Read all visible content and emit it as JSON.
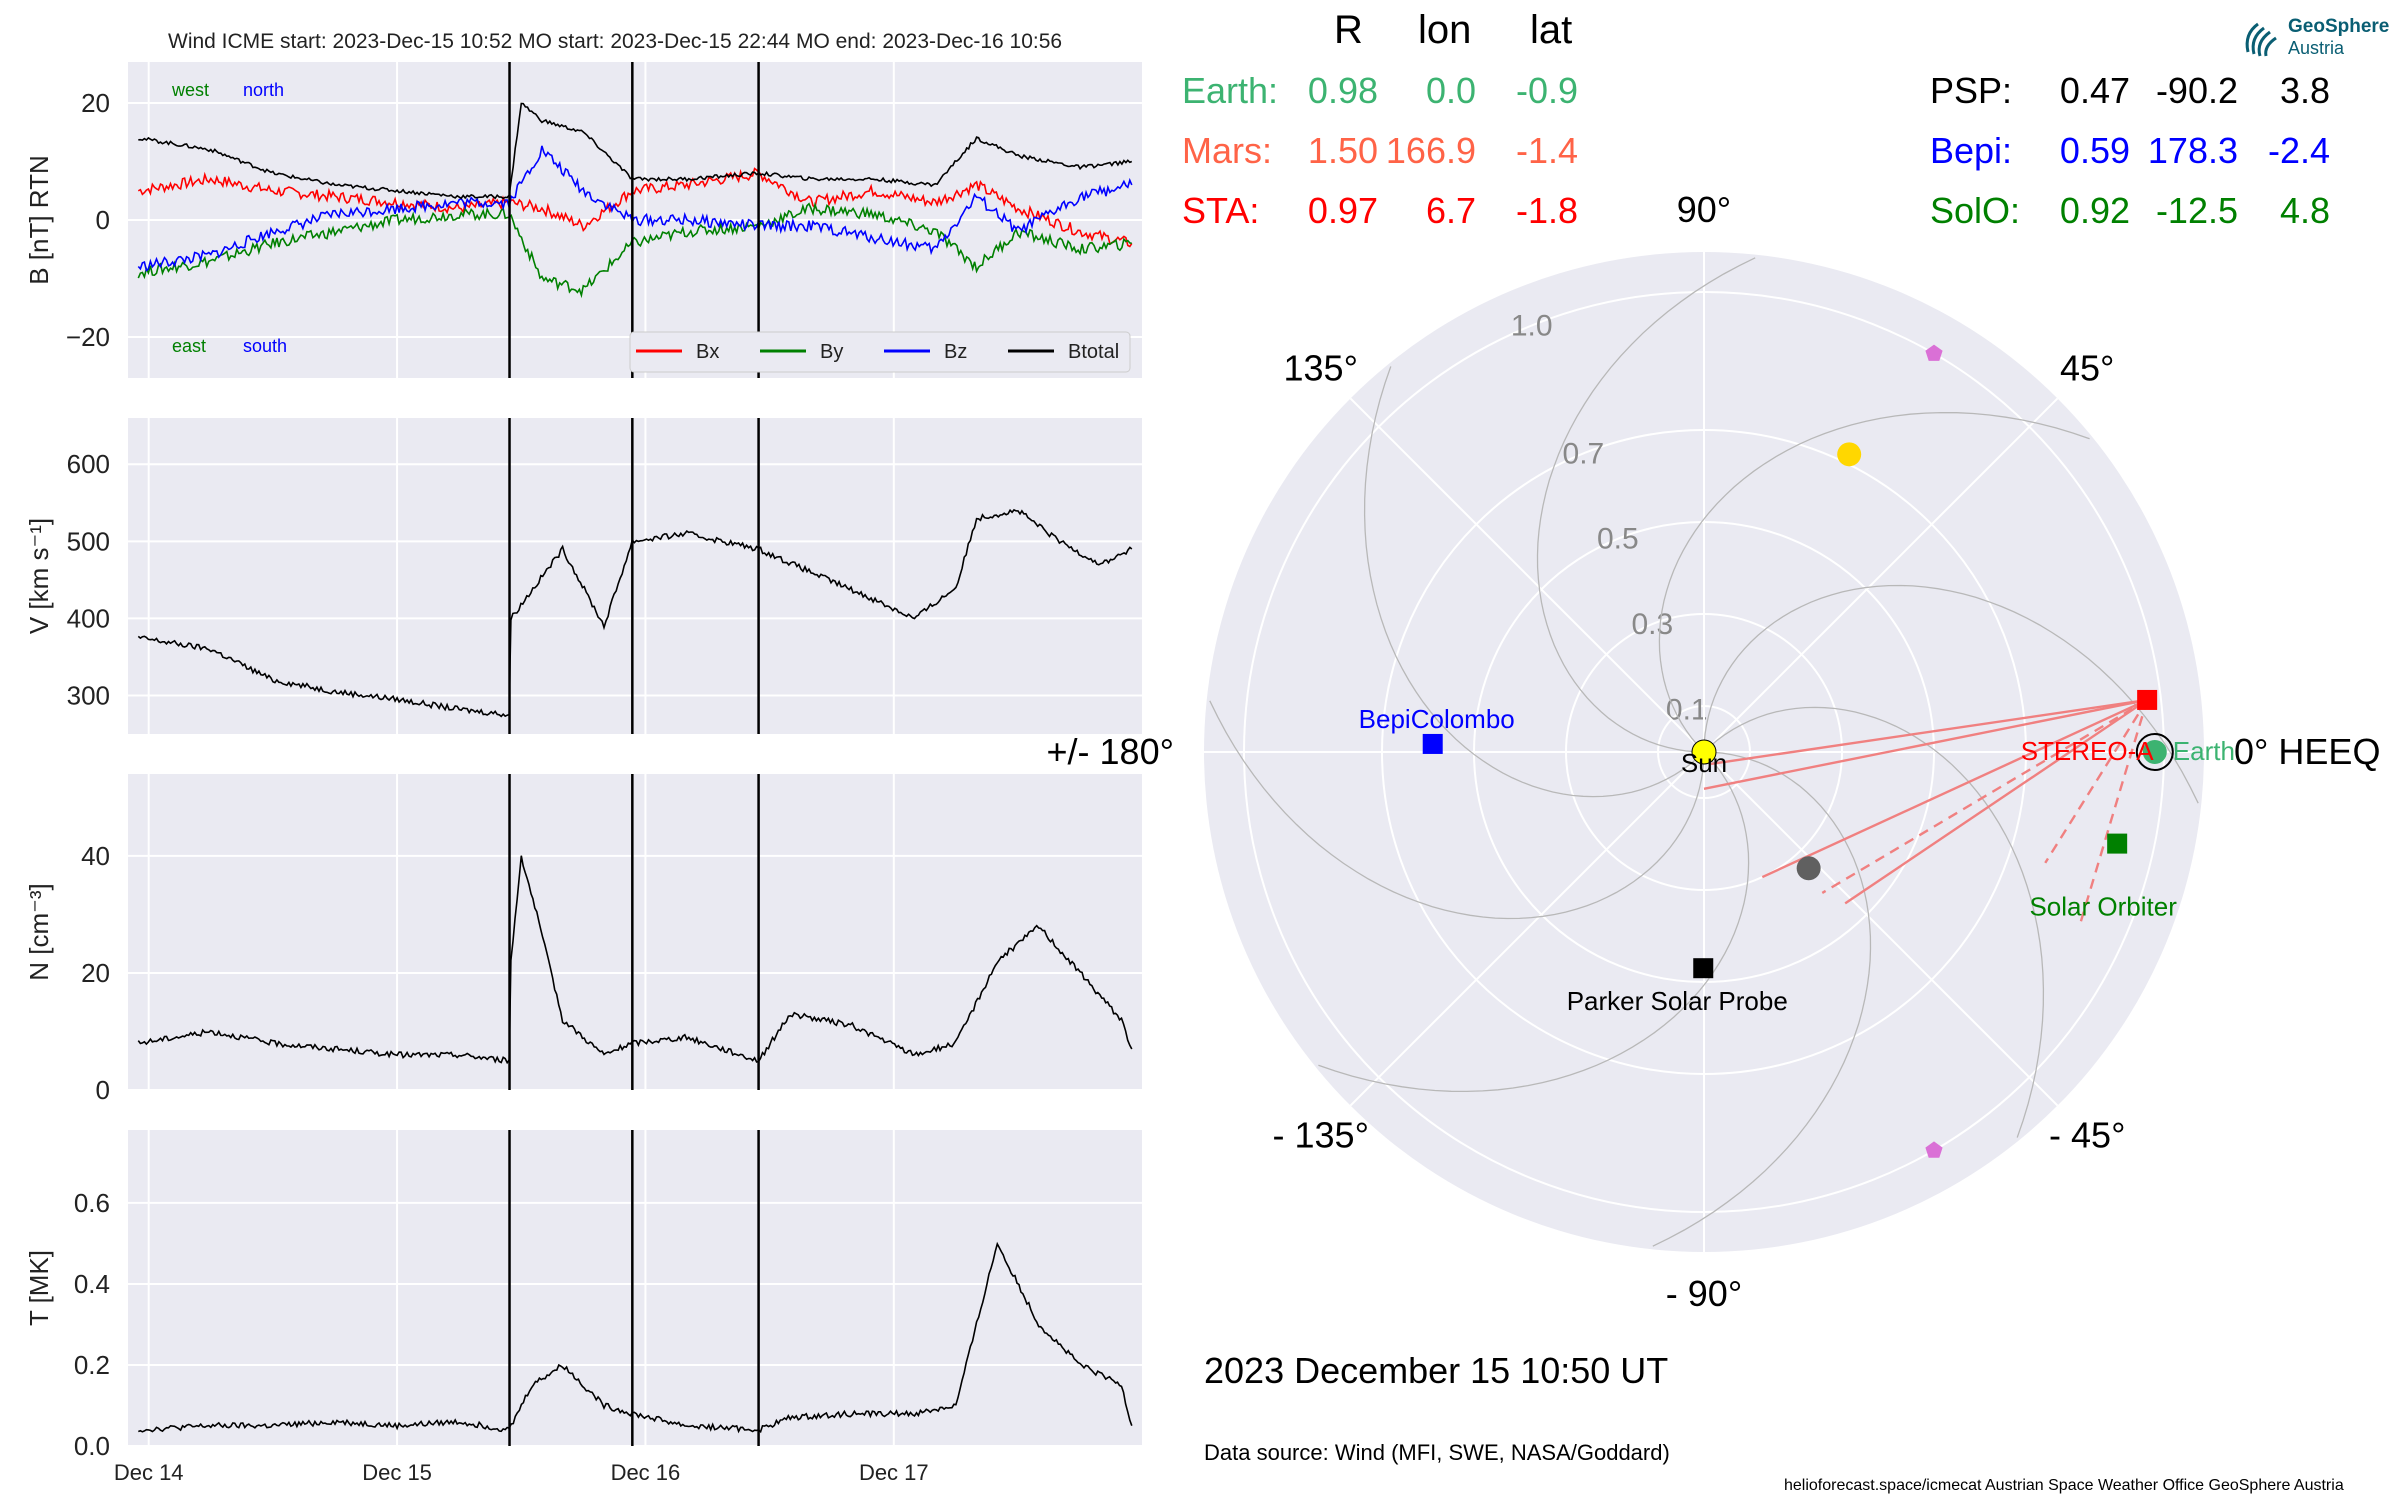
{
  "header": {
    "title": "Wind    ICME start: 2023-Dec-15 10:52   MO start: 2023-Dec-15 22:44   MO end: 2023-Dec-16 10:56",
    "logo_text_1": "GeoSphere",
    "logo_text_2": "Austria"
  },
  "event_lines_x": [
    "2023-12-15T10:52",
    "2023-12-15T22:44",
    "2023-12-16T10:56"
  ],
  "chart_data": [
    {
      "type": "line",
      "id": "magnetic_field",
      "ylabel": "B [nT] RTN",
      "ylim": [
        -27,
        27
      ],
      "yticks": [
        20,
        0,
        -20
      ],
      "ytick_labels": [
        "20",
        "0",
        "−20"
      ],
      "grid": true,
      "legend_placement": "lower-right",
      "annotations": {
        "west": "west",
        "north": "north",
        "east": "east",
        "south": "south"
      },
      "x_days": [
        "2023-12-14",
        "2023-12-15",
        "2023-12-16",
        "2023-12-17"
      ],
      "series": [
        {
          "name": "Bx",
          "color": "#ff0000",
          "x": [
            "2023-12-13T23:00",
            "2023-12-14T06:00",
            "2023-12-14T12:00",
            "2023-12-14T18:00",
            "2023-12-15T00:00",
            "2023-12-15T06:00",
            "2023-12-15T10:50",
            "2023-12-15T14:00",
            "2023-12-15T18:00",
            "2023-12-15T22:44",
            "2023-12-16T04:00",
            "2023-12-16T10:56",
            "2023-12-16T16:00",
            "2023-12-16T22:00",
            "2023-12-17T04:00",
            "2023-12-17T08:00",
            "2023-12-17T12:00",
            "2023-12-17T18:00",
            "2023-12-17T23:00"
          ],
          "values": [
            5,
            7,
            5,
            4,
            3,
            2,
            3,
            2,
            -1,
            5,
            6,
            8,
            3,
            5,
            3,
            6,
            2,
            -2,
            -4
          ]
        },
        {
          "name": "By",
          "color": "#008000",
          "x": [
            "2023-12-13T23:00",
            "2023-12-14T06:00",
            "2023-12-14T12:00",
            "2023-12-14T18:00",
            "2023-12-15T00:00",
            "2023-12-15T06:00",
            "2023-12-15T10:50",
            "2023-12-15T14:00",
            "2023-12-15T18:00",
            "2023-12-15T22:44",
            "2023-12-16T04:00",
            "2023-12-16T10:56",
            "2023-12-16T16:00",
            "2023-12-16T22:00",
            "2023-12-17T04:00",
            "2023-12-17T08:00",
            "2023-12-17T12:00",
            "2023-12-17T18:00",
            "2023-12-17T23:00"
          ],
          "values": [
            -9,
            -7,
            -4,
            -2,
            0,
            1,
            1,
            -10,
            -12,
            -4,
            -2,
            -1,
            2,
            1,
            -2,
            -8,
            -2,
            -5,
            -4
          ]
        },
        {
          "name": "Bz",
          "color": "#0000ff",
          "x": [
            "2023-12-13T23:00",
            "2023-12-14T06:00",
            "2023-12-14T12:00",
            "2023-12-14T18:00",
            "2023-12-15T00:00",
            "2023-12-15T06:00",
            "2023-12-15T10:50",
            "2023-12-15T14:00",
            "2023-12-15T18:00",
            "2023-12-15T22:44",
            "2023-12-16T04:00",
            "2023-12-16T10:56",
            "2023-12-16T16:00",
            "2023-12-16T22:00",
            "2023-12-17T04:00",
            "2023-12-17T08:00",
            "2023-12-17T12:00",
            "2023-12-17T18:00",
            "2023-12-17T23:00"
          ],
          "values": [
            -8,
            -6,
            -2,
            1,
            2,
            3,
            3,
            12,
            5,
            0,
            0,
            -1,
            -1,
            -3,
            -5,
            4,
            -2,
            4,
            6
          ]
        },
        {
          "name": "Btotal",
          "color": "#000000",
          "x": [
            "2023-12-13T23:00",
            "2023-12-14T06:00",
            "2023-12-14T12:00",
            "2023-12-14T18:00",
            "2023-12-15T00:00",
            "2023-12-15T06:00",
            "2023-12-15T10:50",
            "2023-12-15T12:00",
            "2023-12-15T14:00",
            "2023-12-15T18:00",
            "2023-12-15T22:44",
            "2023-12-16T04:00",
            "2023-12-16T10:56",
            "2023-12-16T16:00",
            "2023-12-16T22:00",
            "2023-12-17T04:00",
            "2023-12-17T08:00",
            "2023-12-17T12:00",
            "2023-12-17T18:00",
            "2023-12-17T23:00"
          ],
          "values": [
            14,
            12,
            8,
            6,
            5,
            4,
            4,
            20,
            17,
            15,
            7,
            7,
            8,
            7,
            7,
            6,
            14,
            11,
            9,
            10
          ]
        }
      ]
    },
    {
      "type": "line",
      "id": "velocity",
      "ylabel": "V [km s⁻¹]",
      "ylim": [
        250,
        660
      ],
      "yticks": [
        600,
        500,
        400,
        300
      ],
      "grid": true,
      "series": [
        {
          "name": "",
          "color": "#000000",
          "x": [
            "2023-12-13T23:00",
            "2023-12-14T06:00",
            "2023-12-14T12:00",
            "2023-12-14T18:00",
            "2023-12-15T00:00",
            "2023-12-15T06:00",
            "2023-12-15T10:50",
            "2023-12-15T11:00",
            "2023-12-15T16:00",
            "2023-12-15T20:00",
            "2023-12-15T22:44",
            "2023-12-16T04:00",
            "2023-12-16T10:56",
            "2023-12-16T16:00",
            "2023-12-16T22:00",
            "2023-12-17T02:00",
            "2023-12-17T06:00",
            "2023-12-17T08:00",
            "2023-12-17T12:00",
            "2023-12-17T16:00",
            "2023-12-17T20:00",
            "2023-12-17T23:00"
          ],
          "values": [
            375,
            360,
            320,
            305,
            295,
            282,
            275,
            400,
            490,
            390,
            500,
            510,
            490,
            460,
            425,
            400,
            440,
            530,
            540,
            500,
            470,
            490
          ]
        }
      ]
    },
    {
      "type": "line",
      "id": "density",
      "ylabel": "N [cm⁻³]",
      "ylim": [
        0,
        54
      ],
      "yticks": [
        40,
        20,
        0
      ],
      "grid": true,
      "series": [
        {
          "name": "",
          "color": "#000000",
          "x": [
            "2023-12-13T23:00",
            "2023-12-14T06:00",
            "2023-12-14T12:00",
            "2023-12-14T18:00",
            "2023-12-15T00:00",
            "2023-12-15T06:00",
            "2023-12-15T10:50",
            "2023-12-15T11:00",
            "2023-12-15T12:00",
            "2023-12-15T13:30",
            "2023-12-15T16:00",
            "2023-12-15T20:00",
            "2023-12-15T22:44",
            "2023-12-16T04:00",
            "2023-12-16T10:56",
            "2023-12-16T14:00",
            "2023-12-16T20:00",
            "2023-12-17T02:00",
            "2023-12-17T06:00",
            "2023-12-17T10:00",
            "2023-12-17T14:00",
            "2023-12-17T18:00",
            "2023-12-17T22:00",
            "2023-12-17T23:00"
          ],
          "values": [
            8,
            10,
            8,
            7,
            6,
            6,
            5,
            22,
            40,
            30,
            12,
            6,
            8,
            9,
            5,
            13,
            11,
            6,
            8,
            22,
            28,
            20,
            12,
            7
          ]
        }
      ]
    },
    {
      "type": "line",
      "id": "temperature",
      "ylabel": "T [MK]",
      "ylim": [
        0,
        0.78
      ],
      "yticks": [
        0.6,
        0.4,
        0.2,
        0.0
      ],
      "ytick_labels": [
        "0.6",
        "0.4",
        "0.2",
        "0.0"
      ],
      "xtick_labels": [
        "Dec 14",
        "Dec 15",
        "Dec 16",
        "Dec 17"
      ],
      "grid": true,
      "series": [
        {
          "name": "",
          "color": "#000000",
          "x": [
            "2023-12-13T23:00",
            "2023-12-14T06:00",
            "2023-12-14T12:00",
            "2023-12-14T18:00",
            "2023-12-15T00:00",
            "2023-12-15T06:00",
            "2023-12-15T10:50",
            "2023-12-15T13:00",
            "2023-12-15T16:00",
            "2023-12-15T20:00",
            "2023-12-15T22:44",
            "2023-12-16T04:00",
            "2023-12-16T10:56",
            "2023-12-16T14:00",
            "2023-12-16T20:00",
            "2023-12-17T02:00",
            "2023-12-17T06:00",
            "2023-12-17T08:00",
            "2023-12-17T10:00",
            "2023-12-17T14:00",
            "2023-12-17T18:00",
            "2023-12-17T22:00",
            "2023-12-17T23:00"
          ],
          "values": [
            0.04,
            0.05,
            0.05,
            0.06,
            0.05,
            0.06,
            0.04,
            0.15,
            0.2,
            0.1,
            0.08,
            0.05,
            0.04,
            0.07,
            0.08,
            0.08,
            0.1,
            0.3,
            0.5,
            0.3,
            0.2,
            0.15,
            0.05
          ]
        }
      ]
    },
    {
      "type": "scatter",
      "id": "polar_position",
      "subtype": "polar",
      "r_ticks": [
        0.1,
        0.3,
        0.5,
        0.7,
        1.0
      ],
      "r_tick_labels": [
        "0.1",
        "0.3",
        "0.5",
        "0.7",
        "1.0"
      ],
      "angle_labels": [
        {
          "deg": 0,
          "label": "0° HEEQ"
        },
        {
          "deg": 45,
          "label": "45°"
        },
        {
          "deg": 90,
          "label": "90°"
        },
        {
          "deg": 135,
          "label": "135°"
        },
        {
          "deg": 180,
          "label": "+/- 180°"
        },
        {
          "deg": -135,
          "label": "- 135°"
        },
        {
          "deg": -90,
          "label": "- 90°"
        },
        {
          "deg": -45,
          "label": "- 45°"
        }
      ],
      "grid": true,
      "points": [
        {
          "name": "Sun",
          "label": "Sun",
          "r": 0.0,
          "lon": 0,
          "marker": "circle",
          "color": "#ffff00",
          "label_color": "#000000"
        },
        {
          "name": "Earth",
          "label": "Earth",
          "r": 0.98,
          "lon": 0.0,
          "marker": "circle",
          "color": "#3cb371",
          "label_color": "#3cb371"
        },
        {
          "name": "STEREO-A",
          "label": "STEREO-A",
          "r": 0.97,
          "lon": 6.7,
          "marker": "square",
          "color": "#ff0000",
          "label_color": "#ff0000"
        },
        {
          "name": "Solar Orbiter",
          "label": "Solar Orbiter",
          "r": 0.92,
          "lon": -12.5,
          "marker": "square",
          "color": "#008000",
          "label_color": "#008000"
        },
        {
          "name": "Parker Solar Probe",
          "label": "Parker Solar Probe",
          "r": 0.47,
          "lon": -90.2,
          "marker": "square",
          "color": "#000000",
          "label_color": "#000000"
        },
        {
          "name": "BepiColombo",
          "label": "BepiColombo",
          "r": 0.59,
          "lon": 178.3,
          "marker": "square",
          "color": "#0000ff",
          "label_color": "#0000ff"
        },
        {
          "name": "Venus",
          "label": "",
          "r": 0.72,
          "lon": 64,
          "marker": "circle",
          "color": "#ffd700"
        },
        {
          "name": "Mercury",
          "label": "",
          "r": 0.34,
          "lon": -48,
          "marker": "circle",
          "color": "#606060"
        },
        {
          "name": "L4",
          "label": "",
          "r": 1.0,
          "lon": 60,
          "marker": "pentagon",
          "color": "#da70d6"
        },
        {
          "name": "L5",
          "label": "",
          "r": 1.0,
          "lon": -60,
          "marker": "pentagon",
          "color": "#da70d6"
        }
      ]
    }
  ],
  "positions_table": {
    "headers": [
      "R",
      "lon",
      "lat"
    ],
    "left_rows": [
      {
        "name": "Earth:",
        "r": "0.98",
        "lon": "0.0",
        "lat": "-0.9",
        "color": "#3cb371"
      },
      {
        "name": "Mars:",
        "r": "1.50",
        "lon": "166.9",
        "lat": "-1.4",
        "color": "#ff6347"
      },
      {
        "name": "STA:",
        "r": "0.97",
        "lon": "6.7",
        "lat": "-1.8",
        "color": "#ff0000"
      }
    ],
    "right_rows": [
      {
        "name": "PSP:",
        "r": "0.47",
        "lon": "-90.2",
        "lat": "3.8",
        "color": "#000000"
      },
      {
        "name": "Bepi:",
        "r": "0.59",
        "lon": "178.3",
        "lat": "-2.4",
        "color": "#0000ff"
      },
      {
        "name": "SolO:",
        "r": "0.92",
        "lon": "-12.5",
        "lat": "4.8",
        "color": "#008000"
      }
    ]
  },
  "footer": {
    "date": "2023 December 15  10:50 UT",
    "data_source": "Data source: Wind (MFI, SWE, NASA/Goddard)",
    "credits": "helioforecast.space/icmecat   Austrian Space Weather Office   GeoSphere Austria"
  }
}
